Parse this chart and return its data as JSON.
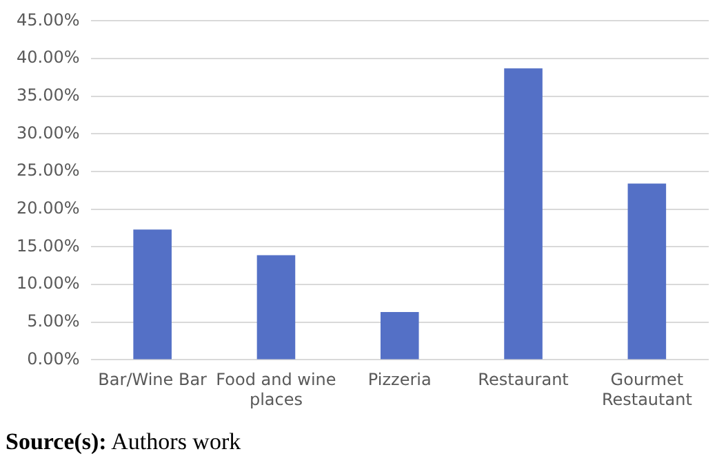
{
  "chart_data": {
    "type": "bar",
    "categories": [
      "Bar/Wine Bar",
      "Food and wine places",
      "Pizzeria",
      "Restaurant",
      "Gourmet Restautant"
    ],
    "values": [
      17.3,
      13.9,
      6.35,
      38.7,
      23.4
    ],
    "color": "#5470c6",
    "ylim": [
      0,
      45
    ],
    "yticks": [
      {
        "value": 0,
        "label": "0.00%"
      },
      {
        "value": 5,
        "label": "5.00%"
      },
      {
        "value": 10,
        "label": "10.00%"
      },
      {
        "value": 15,
        "label": "15.00%"
      },
      {
        "value": 20,
        "label": "20.00%"
      },
      {
        "value": 25,
        "label": "25.00%"
      },
      {
        "value": 30,
        "label": "30.00%"
      },
      {
        "value": 35,
        "label": "35.00%"
      },
      {
        "value": 40,
        "label": "40.00%"
      },
      {
        "value": 45,
        "label": "45.00%"
      }
    ],
    "grid": "y",
    "legend": false,
    "annotations": [
      "Source(s): Authors work"
    ]
  }
}
